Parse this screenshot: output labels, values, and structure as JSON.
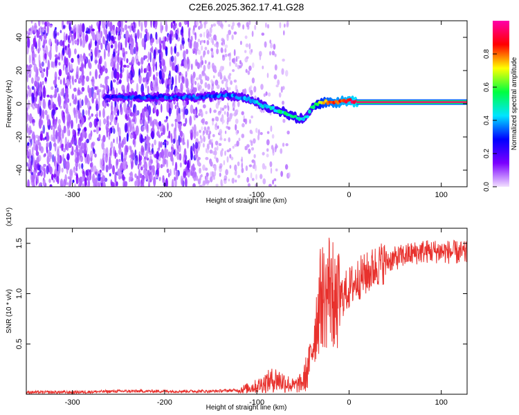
{
  "title": "C2E6.2025.362.17.41.G28",
  "chart_data": [
    {
      "type": "heatmap",
      "title": "C2E6.2025.362.17.41.G28",
      "xlabel": "Height of straight line (km)",
      "ylabel": "Frequency (Hz)",
      "xlim": [
        -350,
        128
      ],
      "ylim": [
        -50,
        50
      ],
      "x_ticks": [
        -300,
        -200,
        -100,
        0,
        100
      ],
      "y_ticks": [
        -40,
        -20,
        0,
        20,
        40
      ],
      "colorbar": {
        "label": "Normalized spectral amplitude",
        "range": [
          0,
          1
        ],
        "ticks": [
          "0.0",
          "0.2",
          "0.4",
          "0.6",
          "0.8"
        ],
        "colors": [
          "#f2e0ff",
          "#7b00ff",
          "#0000ff",
          "#00e5ff",
          "#00ff40",
          "#ffff00",
          "#ff0000",
          "#ff00aa"
        ]
      },
      "ridge": {
        "heights": [
          -265,
          -240,
          -200,
          -160,
          -130,
          -110,
          -90,
          -70,
          -55,
          -45,
          -40,
          -30,
          -20,
          -10,
          0,
          8,
          50,
          128
        ],
        "frequency": [
          4,
          4,
          4,
          4,
          5,
          3,
          -2,
          -5,
          -9,
          -8,
          -2,
          1,
          1,
          1,
          2,
          1,
          1,
          1
        ],
        "amplitude": [
          0.25,
          0.3,
          0.32,
          0.33,
          0.35,
          0.4,
          0.45,
          0.5,
          0.5,
          0.4,
          0.5,
          0.7,
          0.8,
          0.85,
          0.9,
          0.95,
          0.95,
          0.95
        ]
      }
    },
    {
      "type": "line",
      "xlabel": "Height of straight line (km)",
      "ylabel": "SNR (10 * v/v)",
      "scale_label": "(x10⁴)",
      "xlim": [
        -350,
        128
      ],
      "ylim": [
        0,
        1.65
      ],
      "x_ticks": [
        -300,
        -200,
        -100,
        0,
        100
      ],
      "y_ticks": [
        "0.5",
        "1.0",
        "1.5"
      ],
      "line_color": "#e8312d",
      "series": [
        {
          "x": [
            -350,
            -300,
            -250,
            -200,
            -150,
            -120,
            -100,
            -90,
            -80,
            -70,
            -60,
            -50,
            -45,
            -40,
            -35,
            -30,
            -25,
            -20,
            -15,
            -10,
            -5,
            0,
            10,
            20,
            30,
            40,
            60,
            80,
            100,
            128
          ],
          "y": [
            0.02,
            0.02,
            0.03,
            0.03,
            0.03,
            0.04,
            0.08,
            0.12,
            0.15,
            0.12,
            0.08,
            0.12,
            0.25,
            0.45,
            0.75,
            1.0,
            0.95,
            1.15,
            0.85,
            0.95,
            1.0,
            1.05,
            1.15,
            1.2,
            1.28,
            1.32,
            1.38,
            1.42,
            1.42,
            1.4
          ]
        }
      ]
    }
  ]
}
